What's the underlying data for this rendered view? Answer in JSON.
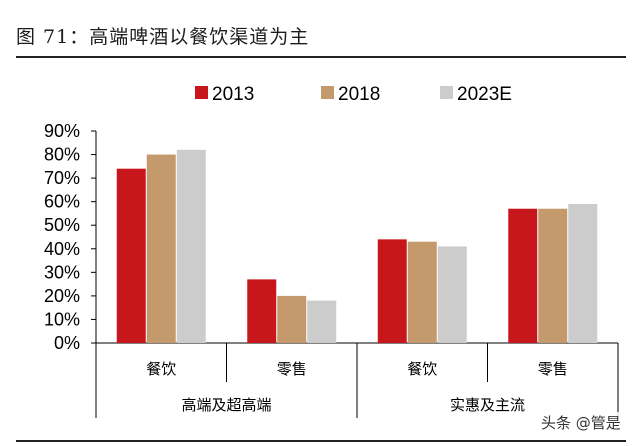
{
  "figure": {
    "title": "图 71：高端啤酒以餐饮渠道为主",
    "watermark": "头条 @管是"
  },
  "chart_data": {
    "type": "bar",
    "series": [
      {
        "name": "2013",
        "color": "#c8161d",
        "values": [
          0.74,
          0.27,
          0.44,
          0.57
        ]
      },
      {
        "name": "2018",
        "color": "#c49a6c",
        "values": [
          0.8,
          0.2,
          0.43,
          0.57
        ]
      },
      {
        "name": "2023E",
        "color": "#cccccc",
        "values": [
          0.82,
          0.18,
          0.41,
          0.59
        ]
      }
    ],
    "categories": [
      "餐饮",
      "零售",
      "餐饮",
      "零售"
    ],
    "groups": [
      "高端及超高端",
      "实惠及主流"
    ],
    "y_ticks": [
      "90%",
      "80%",
      "70%",
      "60%",
      "50%",
      "40%",
      "30%",
      "20%",
      "10%",
      "0%"
    ],
    "ylim": [
      0,
      0.9
    ],
    "legend_position": "top-center",
    "grid": false
  }
}
